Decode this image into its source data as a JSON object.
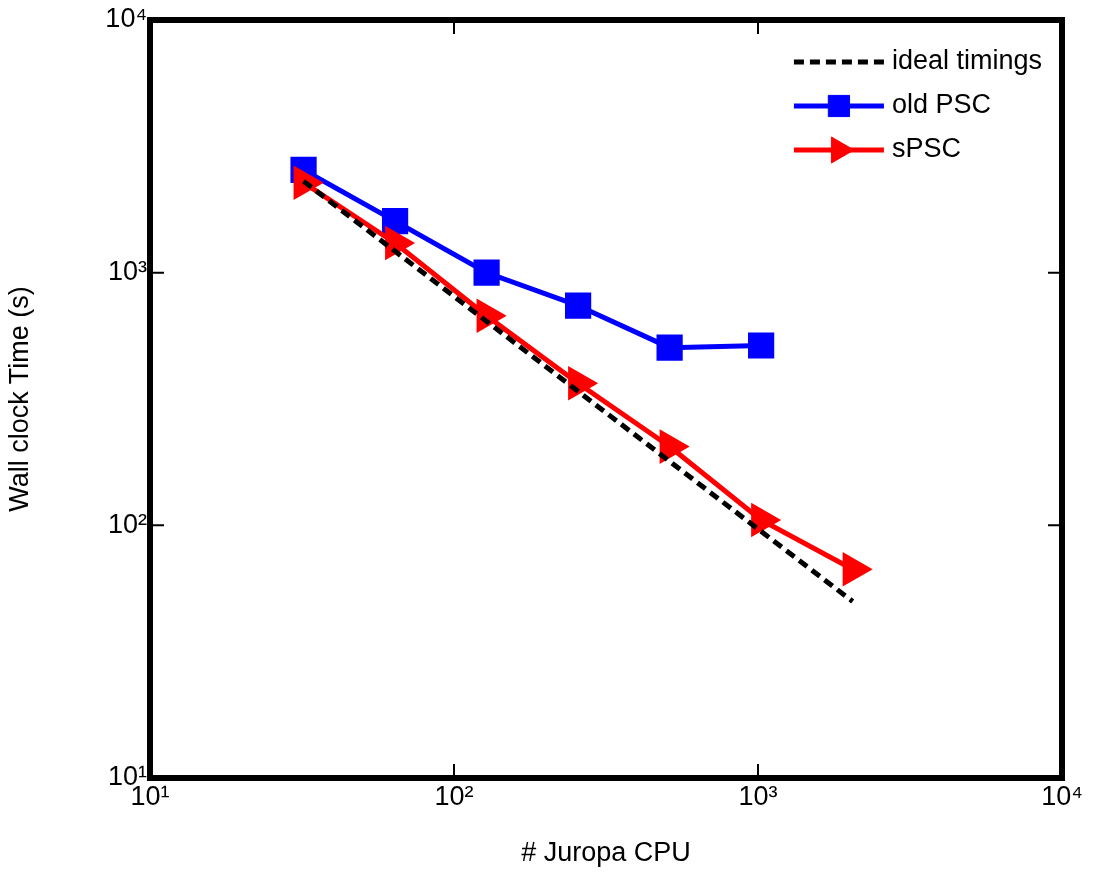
{
  "chart_data": {
    "type": "line",
    "xlabel": "# Juropa CPU",
    "ylabel": "Wall clock Time (s)",
    "log": "xy",
    "xlim": [
      10,
      10000
    ],
    "ylim": [
      10,
      10000
    ],
    "xticks": [
      {
        "value": 10,
        "label": "10¹"
      },
      {
        "value": 100,
        "label": "10²"
      },
      {
        "value": 1000,
        "label": "10³"
      },
      {
        "value": 10000,
        "label": "10⁴"
      }
    ],
    "yticks": [
      {
        "value": 10,
        "label": "10¹"
      },
      {
        "value": 100,
        "label": "10²"
      },
      {
        "value": 1000,
        "label": "10³"
      },
      {
        "value": 10000,
        "label": "10⁴"
      }
    ],
    "grid": false,
    "legend": "top right",
    "series": [
      {
        "name": "ideal timings",
        "color": "#000000",
        "line_style": "dashed",
        "marker": "none",
        "x": [
          32,
          2048
        ],
        "values": [
          2300,
          50
        ]
      },
      {
        "name": "old PSC",
        "color": "#0000ff",
        "marker": "square",
        "line_style": "solid",
        "x": [
          32,
          64,
          128,
          256,
          512,
          1024
        ],
        "values": [
          2550,
          1600,
          1000,
          740,
          505,
          515
        ]
      },
      {
        "name": "sPSC",
        "color": "#ff0000",
        "marker": "triangle",
        "line_style": "solid",
        "x": [
          32,
          64,
          128,
          256,
          512,
          1024,
          2048
        ],
        "values": [
          2270,
          1310,
          675,
          365,
          205,
          105,
          67
        ]
      }
    ]
  }
}
